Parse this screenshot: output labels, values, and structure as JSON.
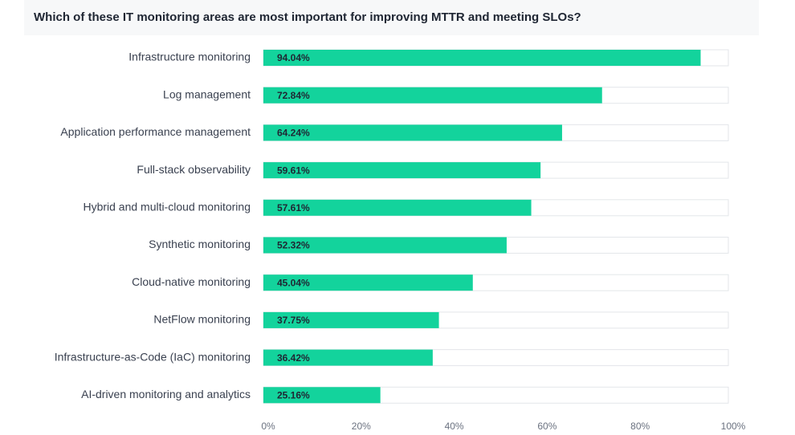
{
  "chart_data": {
    "type": "bar",
    "orientation": "horizontal",
    "title": "Which of these IT monitoring areas are most important for improving MTTR and meeting SLOs?",
    "categories": [
      "Infrastructure monitoring",
      "Log management",
      "Application performance management",
      "Full-stack observability",
      "Hybrid and multi-cloud monitoring",
      "Synthetic monitoring",
      "Cloud-native monitoring",
      "NetFlow monitoring",
      "Infrastructure-as-Code (IaC) monitoring",
      "AI-driven monitoring and analytics"
    ],
    "values": [
      94.04,
      72.84,
      64.24,
      59.61,
      57.61,
      52.32,
      45.04,
      37.75,
      36.42,
      25.16
    ],
    "value_labels": [
      "94.04%",
      "72.84%",
      "64.24%",
      "59.61%",
      "57.61%",
      "52.32%",
      "45.04%",
      "37.75%",
      "36.42%",
      "25.16%"
    ],
    "color": "#13d39c",
    "xlim": [
      0,
      100
    ],
    "xticks": [
      {
        "value": 0,
        "label": "0%"
      },
      {
        "value": 20,
        "label": "20%"
      },
      {
        "value": 40,
        "label": "40%"
      },
      {
        "value": 60,
        "label": "60%"
      },
      {
        "value": 80,
        "label": "80%"
      },
      {
        "value": 100,
        "label": "100%"
      }
    ]
  }
}
